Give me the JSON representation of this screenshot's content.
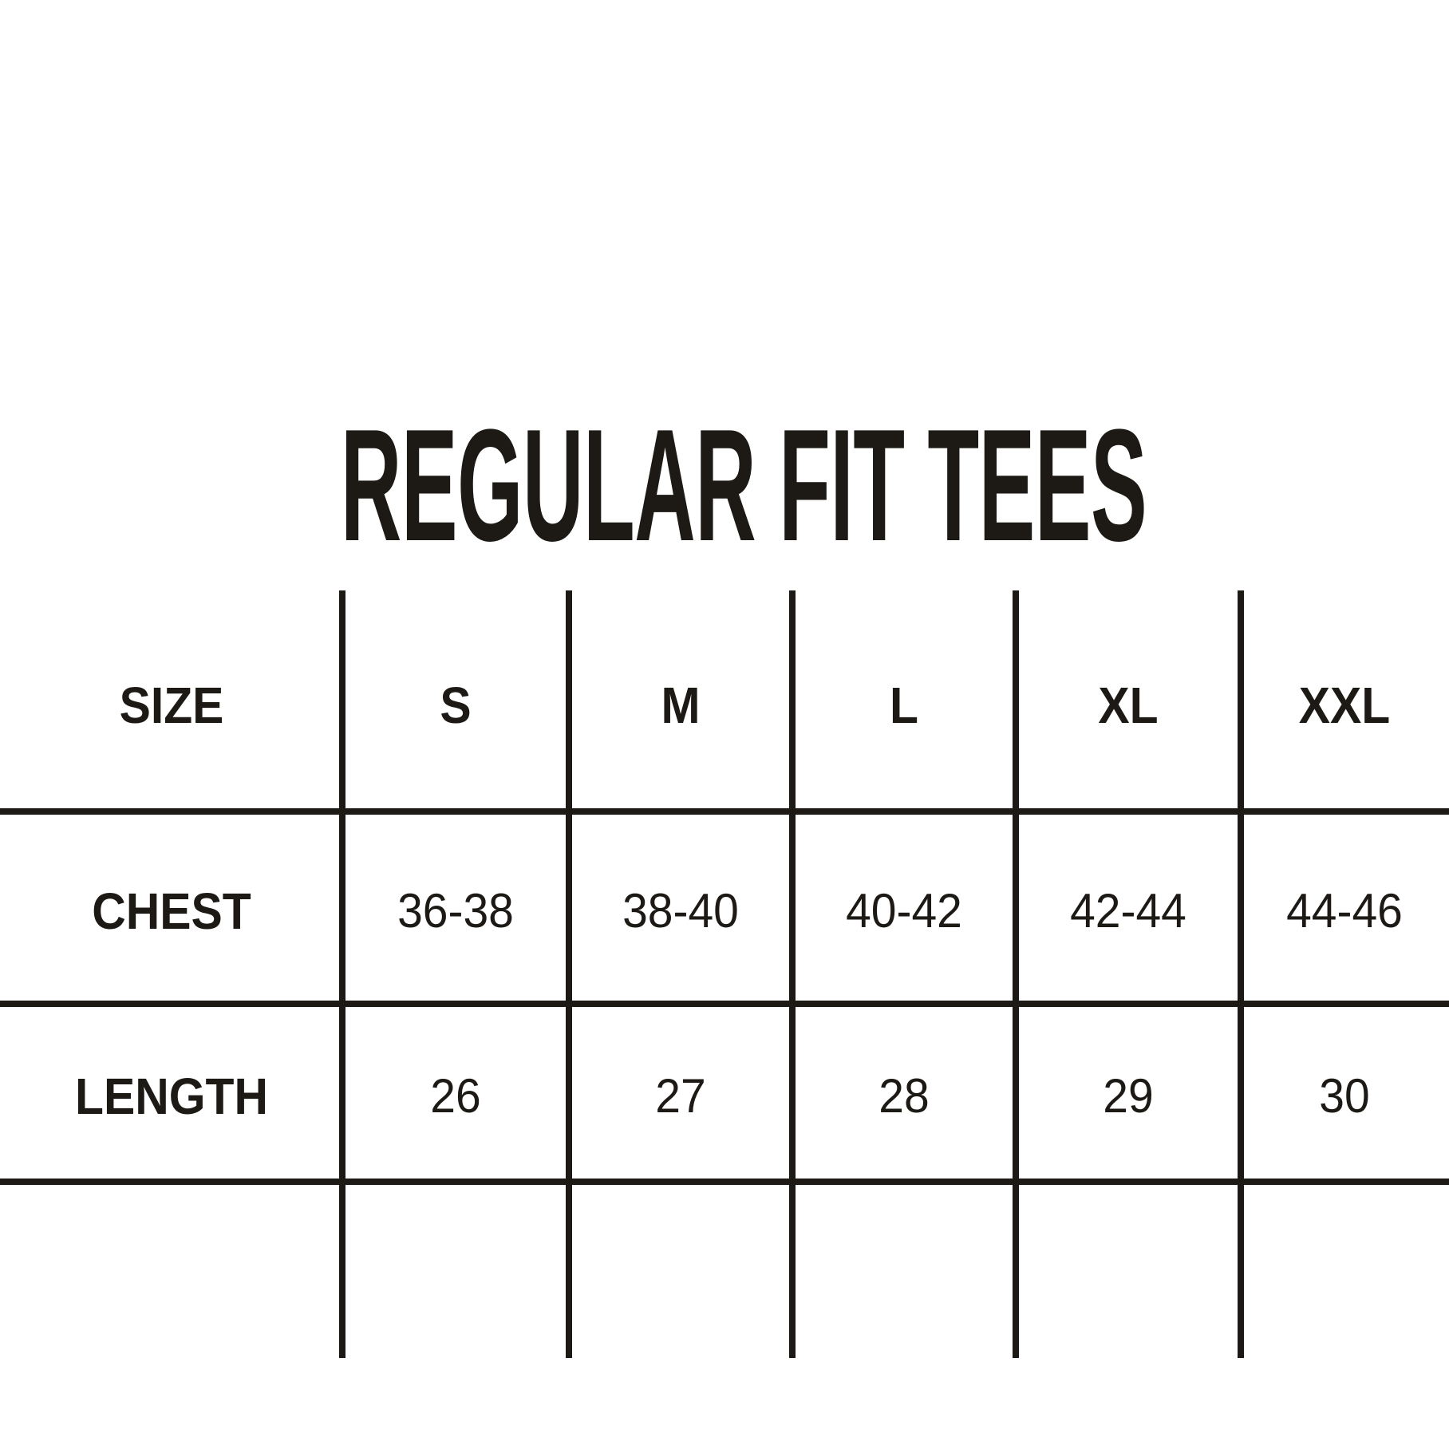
{
  "title": "REGULAR FIT TEES",
  "colors": {
    "ink": "#1d1a16",
    "background": "#ffffff"
  },
  "chart_data": {
    "type": "table",
    "title": "REGULAR FIT TEES",
    "columns": [
      "SIZE",
      "S",
      "M",
      "L",
      "XL",
      "XXL"
    ],
    "rows": [
      [
        "CHEST",
        "36-38",
        "38-40",
        "40-42",
        "42-44",
        "44-46"
      ],
      [
        "LENGTH",
        "26",
        "27",
        "28",
        "29",
        "30"
      ]
    ],
    "layout_hints": {
      "header_row": true,
      "label_column": true,
      "empty_trailing_row": true,
      "outer_border": false,
      "horizontal_rules_full_width": true
    }
  }
}
